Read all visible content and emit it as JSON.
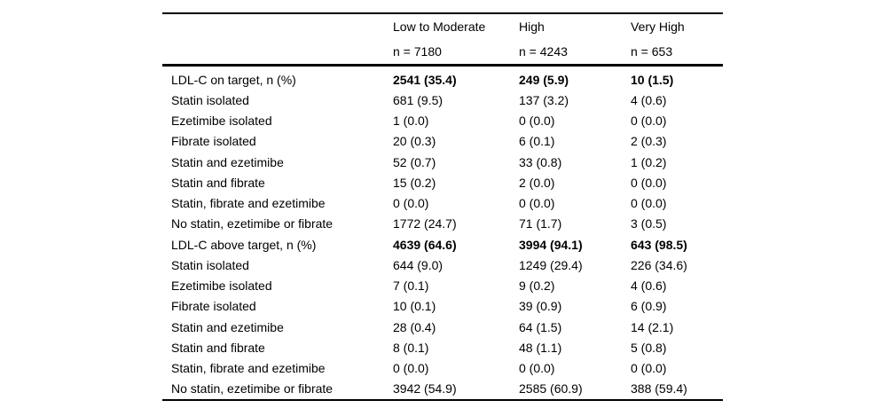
{
  "page": {
    "background": "#ffffff",
    "text_color": "#000000",
    "rule_color": "#000000"
  },
  "table": {
    "header": {
      "groups": [
        {
          "label": "Low to Moderate",
          "n": "n = 7180"
        },
        {
          "label": "High",
          "n": "n = 4243"
        },
        {
          "label": "Very High",
          "n": "n = 653"
        }
      ]
    },
    "rows": [
      {
        "label": "LDL-C on target, n (%)",
        "bold_values": true,
        "values": [
          "2541 (35.4)",
          "249 (5.9)",
          "10 (1.5)"
        ]
      },
      {
        "label": "Statin isolated",
        "bold_values": false,
        "values": [
          "681 (9.5)",
          "137 (3.2)",
          "4 (0.6)"
        ]
      },
      {
        "label": "Ezetimibe isolated",
        "bold_values": false,
        "values": [
          "1 (0.0)",
          "0 (0.0)",
          "0 (0.0)"
        ]
      },
      {
        "label": "Fibrate isolated",
        "bold_values": false,
        "values": [
          "20 (0.3)",
          "6 (0.1)",
          "2 (0.3)"
        ]
      },
      {
        "label": "Statin and ezetimibe",
        "bold_values": false,
        "values": [
          "52 (0.7)",
          "33 (0.8)",
          "1 (0.2)"
        ]
      },
      {
        "label": "Statin and fibrate",
        "bold_values": false,
        "values": [
          "15 (0.2)",
          "2 (0.0)",
          "0 (0.0)"
        ]
      },
      {
        "label": "Statin, fibrate and ezetimibe",
        "bold_values": false,
        "values": [
          "0 (0.0)",
          "0 (0.0)",
          "0 (0.0)"
        ]
      },
      {
        "label": "No statin, ezetimibe or fibrate",
        "bold_values": false,
        "values": [
          "1772 (24.7)",
          "71 (1.7)",
          "3 (0.5)"
        ]
      },
      {
        "label": "LDL-C above target, n (%)",
        "bold_values": true,
        "values": [
          "4639 (64.6)",
          "3994 (94.1)",
          "643 (98.5)"
        ]
      },
      {
        "label": "Statin isolated",
        "bold_values": false,
        "values": [
          "644 (9.0)",
          "1249 (29.4)",
          "226 (34.6)"
        ]
      },
      {
        "label": "Ezetimibe isolated",
        "bold_values": false,
        "values": [
          "7 (0.1)",
          "9 (0.2)",
          "4 (0.6)"
        ]
      },
      {
        "label": "Fibrate isolated",
        "bold_values": false,
        "values": [
          "10 (0.1)",
          "39 (0.9)",
          "6 (0.9)"
        ]
      },
      {
        "label": "Statin and ezetimibe",
        "bold_values": false,
        "values": [
          "28 (0.4)",
          "64 (1.5)",
          "14 (2.1)"
        ]
      },
      {
        "label": "Statin and fibrate",
        "bold_values": false,
        "values": [
          "8 (0.1)",
          "48 (1.1)",
          "5 (0.8)"
        ]
      },
      {
        "label": "Statin, fibrate and ezetimibe",
        "bold_values": false,
        "values": [
          "0 (0.0)",
          "0 (0.0)",
          "0 (0.0)"
        ]
      },
      {
        "label": "No statin, ezetimibe or fibrate",
        "bold_values": false,
        "values": [
          "3942 (54.9)",
          "2585 (60.9)",
          "388 (59.4)"
        ]
      }
    ]
  }
}
